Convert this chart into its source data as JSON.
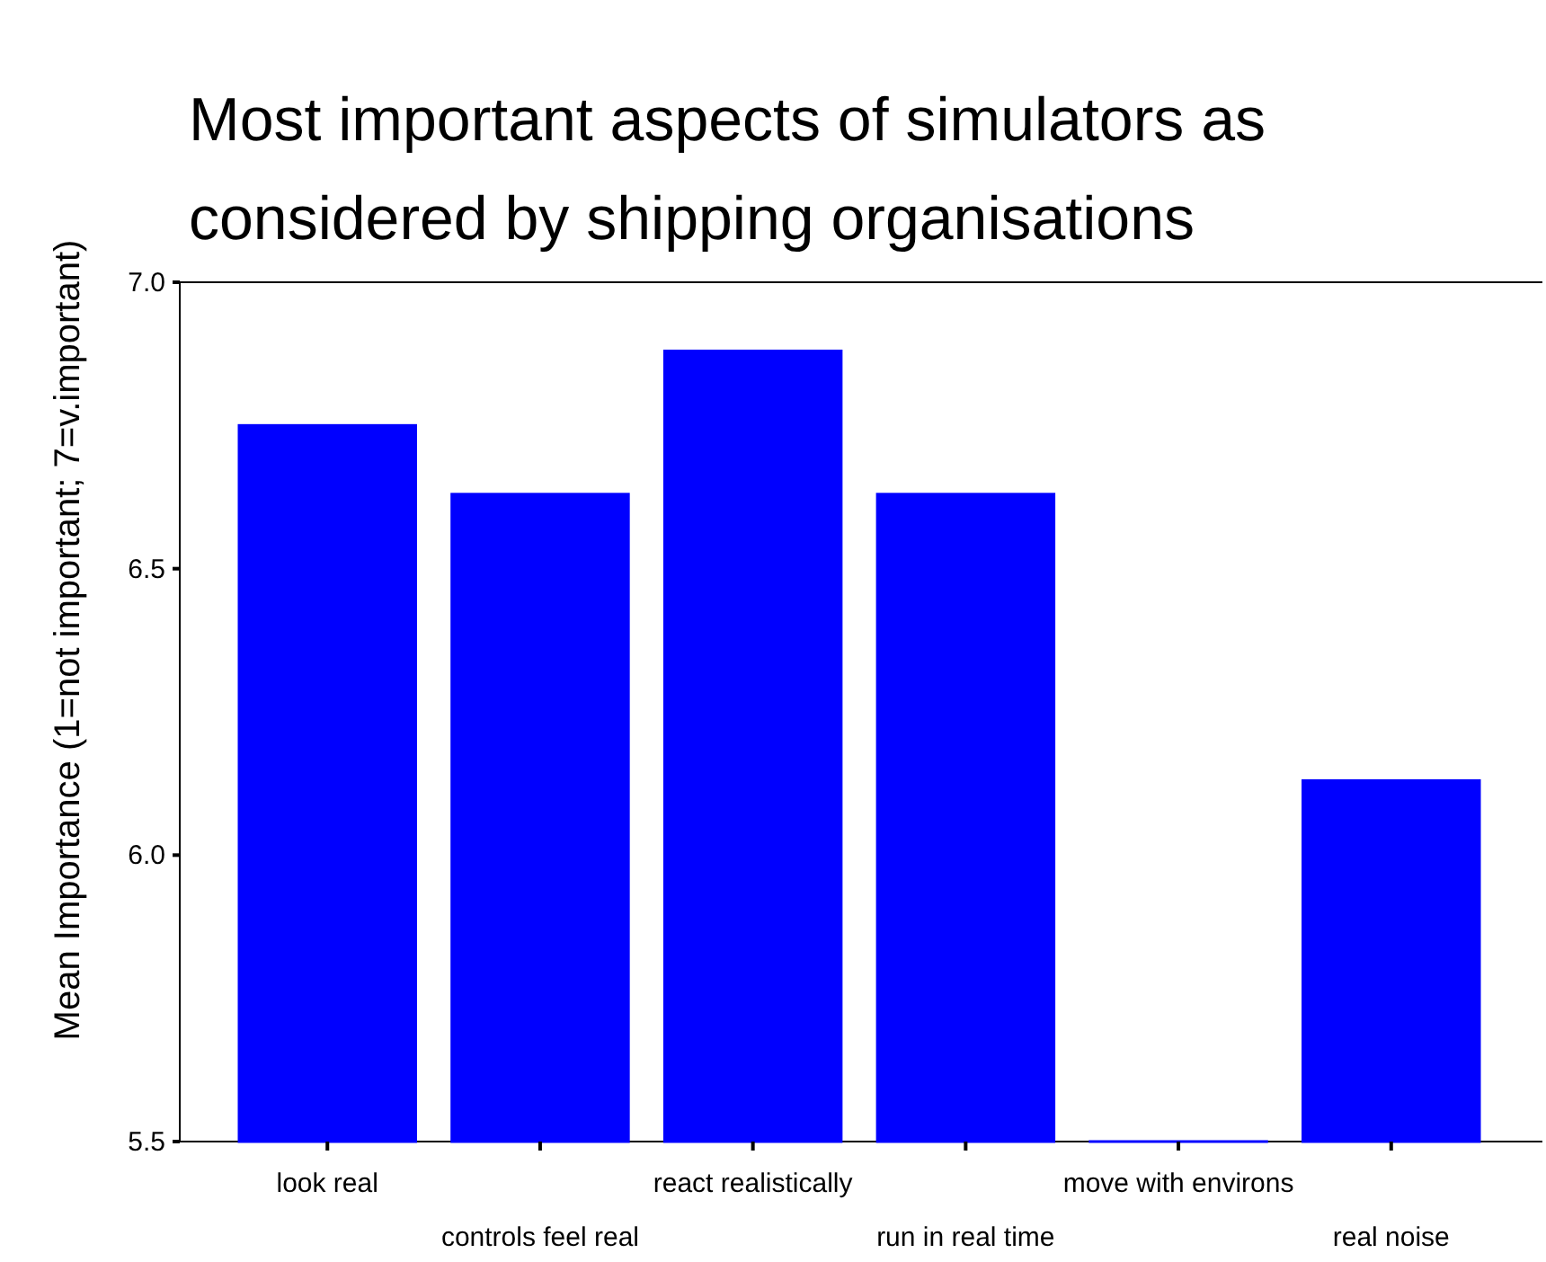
{
  "chart_data": {
    "type": "bar",
    "title": "Most important aspects of simulators as considered by shipping organisations",
    "ylabel": "Mean Importance (1=not important; 7=v.important)",
    "categories": [
      "look real",
      "controls feel real",
      "react realistically",
      "run in real time",
      "move with environs",
      "real noise"
    ],
    "values": [
      6.75,
      6.63,
      6.88,
      6.63,
      5.5,
      6.13
    ],
    "color": "#0000ff",
    "ylim": [
      5.5,
      7.0
    ],
    "yticks": [
      {
        "value": 5.5,
        "label": "5.5"
      },
      {
        "value": 6,
        "label": "6.0"
      },
      {
        "value": 6.5,
        "label": "6.5"
      },
      {
        "value": 7,
        "label": "7.0"
      }
    ],
    "grid": false
  }
}
